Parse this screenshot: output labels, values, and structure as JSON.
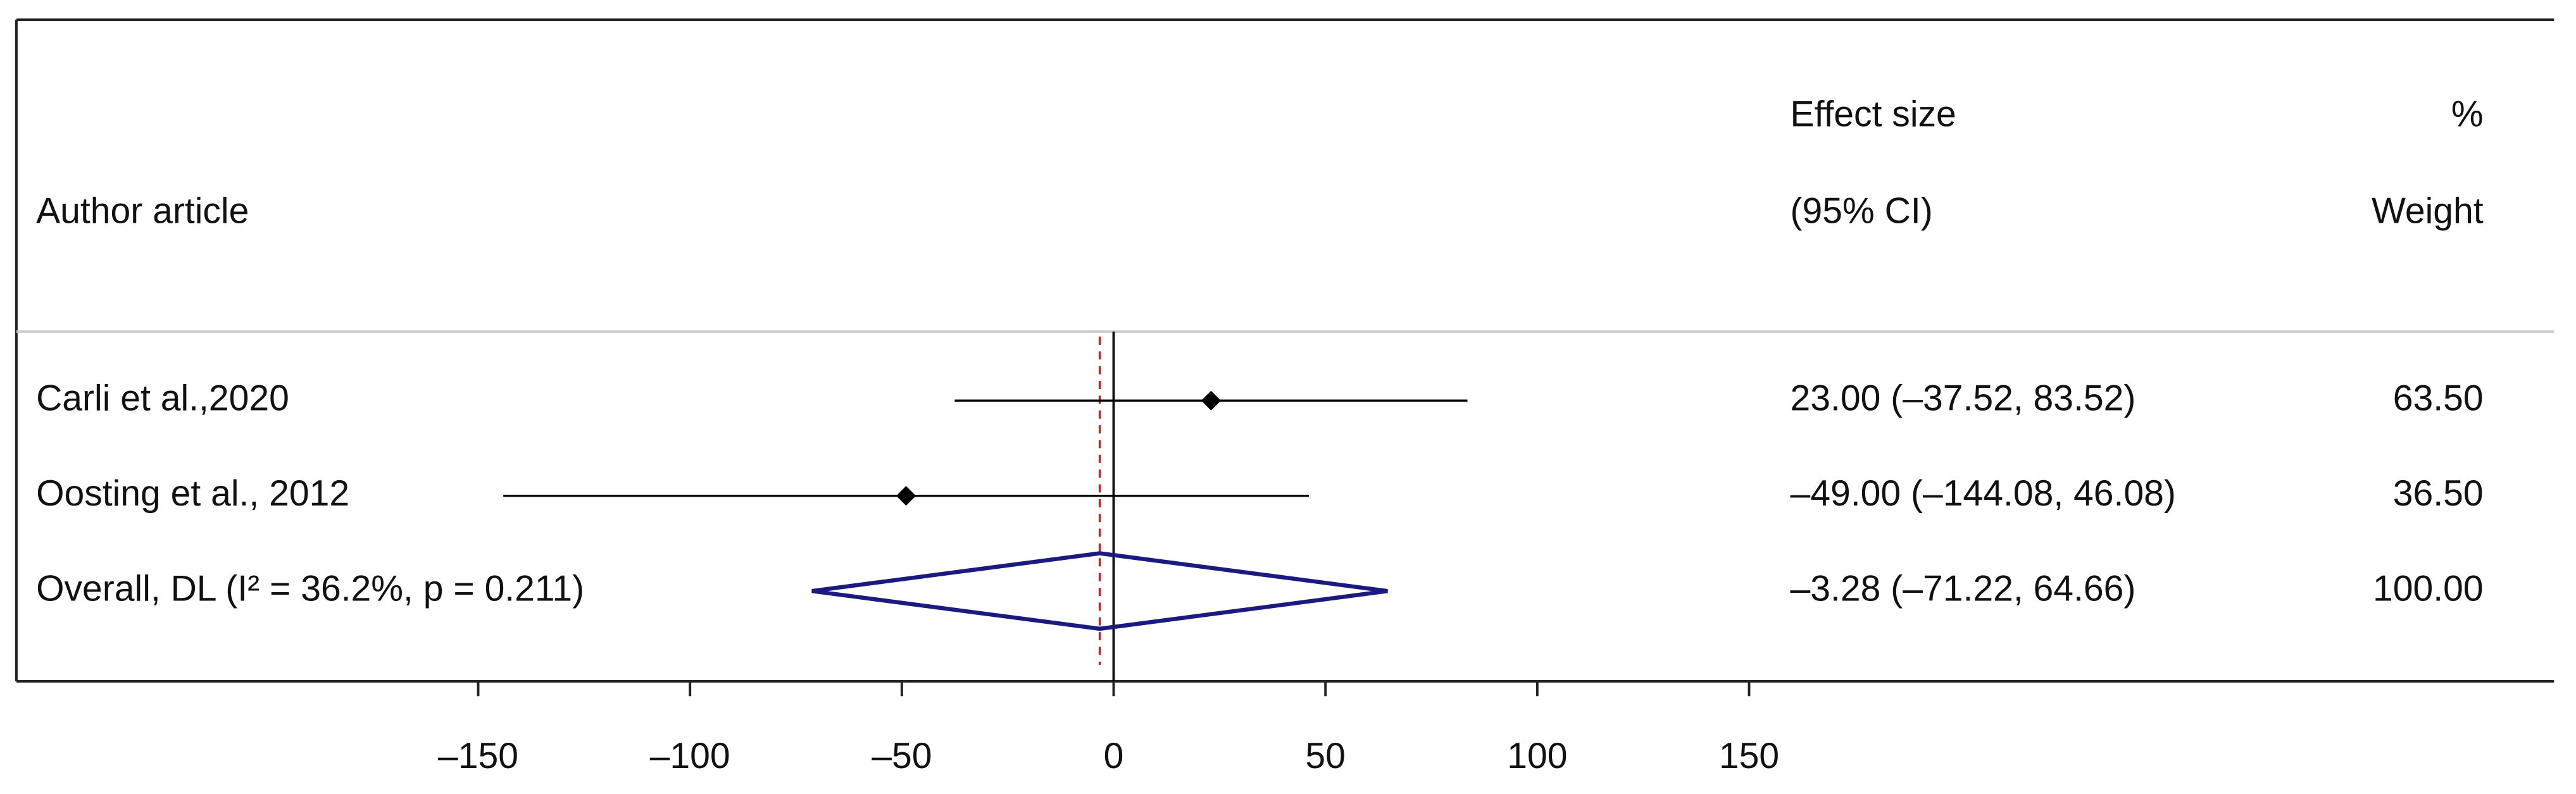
{
  "chart_data": {
    "type": "forest",
    "header_label": "Author article",
    "header_effect": [
      "Effect size",
      "(95% CI)"
    ],
    "header_weight": [
      "%",
      "Weight"
    ],
    "categories": [
      "Carli et al.,2020",
      "Oosting et al., 2012",
      "Overall, DL (I² = 36.2%, p = 0.211)"
    ],
    "series": [
      {
        "values": [
          23.0,
          -49.0,
          -3.28
        ],
        "lower": [
          -37.52,
          -144.08,
          -71.22
        ],
        "upper": [
          83.52,
          46.08,
          64.66
        ],
        "value_labels": [
          "23.00 (–37.52, 83.52)",
          "–49.00 (–144.08, 46.08)",
          "–3.28 (–71.22, 64.66)"
        ],
        "weights": [
          "63.50",
          "36.50",
          "100.00"
        ],
        "color": "#000000"
      }
    ],
    "overall_color": "#1a1a80",
    "overall_line_color": "#a0302a",
    "xlim": [
      -259,
      340
    ],
    "xticks": [
      {
        "value": -150,
        "label": "–150"
      },
      {
        "value": -100,
        "label": "–100"
      },
      {
        "value": -50,
        "label": "–50"
      },
      0,
      50,
      100,
      150
    ]
  }
}
